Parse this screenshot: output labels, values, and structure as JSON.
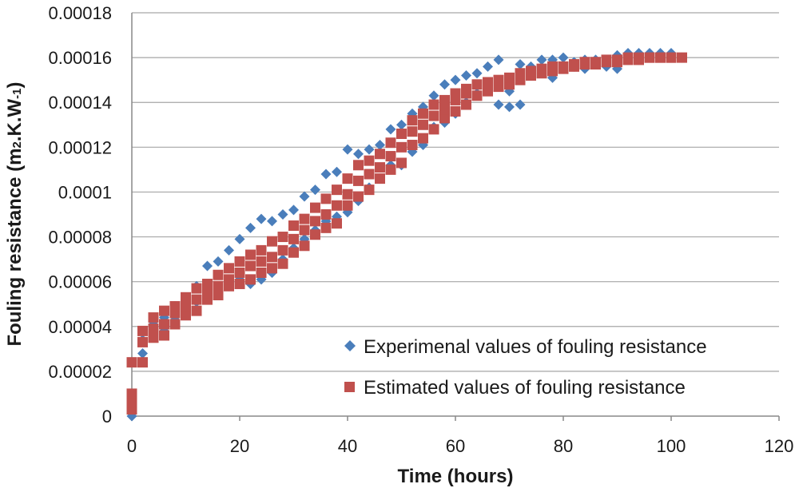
{
  "chart_data": {
    "type": "scatter",
    "title": "",
    "xlabel": "Time (hours)",
    "ylabel_parts": [
      "Fouling resistance (m",
      "2",
      ".K.W",
      "-1",
      ")"
    ],
    "xlim": [
      0,
      120
    ],
    "ylim": [
      0,
      0.00018
    ],
    "x_ticks": [
      0,
      20,
      40,
      60,
      80,
      100,
      120
    ],
    "x_tick_labels": [
      "0",
      "20",
      "40",
      "60",
      "80",
      "100",
      "120"
    ],
    "y_ticks": [
      0,
      2e-05,
      4e-05,
      6e-05,
      8e-05,
      0.0001,
      0.00012,
      0.00014,
      0.00016,
      0.00018
    ],
    "y_tick_labels": [
      "0",
      "0.00002",
      "0.00004",
      "0.00006",
      "0.00008",
      "0.0001",
      "0.00012",
      "0.00014",
      "0.00016",
      "0.00018"
    ],
    "grid": "horizontal",
    "legend_position": "bottom-right",
    "colors": {
      "experimental": "#4a7ebb",
      "estimated": "#c0504d",
      "grid": "#a6a6a6",
      "axis": "#888888"
    },
    "series": [
      {
        "name": "Experimenal values of fouling resistance",
        "marker": "diamond",
        "x": [
          0,
          0,
          2,
          2,
          4,
          4,
          6,
          6,
          8,
          8,
          10,
          10,
          12,
          12,
          14,
          14,
          16,
          16,
          18,
          18,
          20,
          20,
          22,
          22,
          24,
          24,
          26,
          26,
          28,
          28,
          30,
          30,
          32,
          32,
          34,
          34,
          36,
          36,
          38,
          38,
          40,
          40,
          42,
          42,
          44,
          44,
          46,
          46,
          48,
          48,
          50,
          50,
          52,
          52,
          54,
          54,
          56,
          56,
          58,
          58,
          60,
          60,
          62,
          62,
          64,
          64,
          66,
          66,
          68,
          68,
          70,
          70,
          72,
          72,
          74,
          74,
          76,
          76,
          78,
          78,
          80,
          80,
          82,
          82,
          84,
          84,
          86,
          86,
          88,
          88,
          90,
          90,
          92,
          92,
          94,
          94,
          96,
          96,
          98,
          98,
          100,
          100,
          102
        ],
        "y": [
          0,
          9.5e-06,
          2.8e-05,
          3.4e-05,
          3.6e-05,
          4.1e-05,
          3.8e-05,
          4.4e-05,
          4.3e-05,
          4.9e-05,
          4.7e-05,
          5.2e-05,
          5.1e-05,
          5.8e-05,
          5.3e-05,
          6.7e-05,
          5.5e-05,
          6.9e-05,
          5.8e-05,
          7.4e-05,
          6.1e-05,
          7.9e-05,
          5.9e-05,
          8.4e-05,
          6.1e-05,
          8.8e-05,
          6.4e-05,
          8.7e-05,
          7e-05,
          9e-05,
          7.5e-05,
          9.2e-05,
          7.9e-05,
          9.8e-05,
          8.3e-05,
          0.000101,
          8.7e-05,
          0.000108,
          8.9e-05,
          0.000109,
          9.1e-05,
          0.000119,
          9.6e-05,
          0.000117,
          0.000102,
          0.000119,
          0.000106,
          0.000121,
          0.000112,
          0.000128,
          0.000112,
          0.00013,
          0.000118,
          0.000135,
          0.000121,
          0.000138,
          0.000129,
          0.000143,
          0.000131,
          0.000148,
          0.000135,
          0.00015,
          0.00014,
          0.000152,
          0.000144,
          0.000153,
          0.000149,
          0.000156,
          0.000139,
          0.000159,
          0.000138,
          0.000145,
          0.000139,
          0.000157,
          0.000152,
          0.000156,
          0.000154,
          0.000159,
          0.000151,
          0.000159,
          0.000155,
          0.00016,
          0.000156,
          0.000158,
          0.000155,
          0.000159,
          0.000157,
          0.000159,
          0.000156,
          0.000158,
          0.000155,
          0.000161,
          0.000159,
          0.000162,
          0.000159,
          0.000162,
          0.00016,
          0.000162,
          0.00016,
          0.000162,
          0.00016,
          0.000162,
          0.00016
        ]
      },
      {
        "name": "Estimated values of fouling resistance",
        "marker": "square",
        "x": [
          0,
          0,
          0,
          0,
          2,
          2,
          2,
          4,
          4,
          4,
          6,
          6,
          6,
          8,
          8,
          8,
          10,
          10,
          10,
          12,
          12,
          12,
          14,
          14,
          14,
          16,
          16,
          16,
          18,
          18,
          18,
          20,
          20,
          20,
          22,
          22,
          22,
          24,
          24,
          24,
          26,
          26,
          26,
          28,
          28,
          28,
          30,
          30,
          30,
          32,
          32,
          32,
          34,
          34,
          34,
          36,
          36,
          36,
          38,
          38,
          38,
          40,
          40,
          40,
          42,
          42,
          42,
          44,
          44,
          44,
          46,
          46,
          46,
          48,
          48,
          48,
          50,
          50,
          50,
          52,
          52,
          52,
          54,
          54,
          54,
          56,
          56,
          56,
          58,
          58,
          58,
          60,
          60,
          60,
          62,
          62,
          62,
          64,
          64,
          66,
          66,
          68,
          68,
          70,
          70,
          72,
          72,
          74,
          74,
          76,
          76,
          78,
          78,
          80,
          80,
          82,
          82,
          84,
          84,
          86,
          86,
          88,
          88,
          90,
          90,
          92,
          92,
          94,
          94,
          96,
          96,
          98,
          98,
          100,
          100,
          102
        ],
        "y": [
          3e-06,
          6e-06,
          1e-05,
          2.4e-05,
          2.4e-05,
          3.3e-05,
          3.8e-05,
          3.5e-05,
          3.9e-05,
          4.4e-05,
          3.6e-05,
          4.1e-05,
          4.7e-05,
          4.1e-05,
          4.6e-05,
          4.9e-05,
          4.5e-05,
          4.9e-05,
          5.3e-05,
          4.7e-05,
          5.2e-05,
          5.7e-05,
          5.2e-05,
          5.5e-05,
          5.9e-05,
          5.4e-05,
          5.8e-05,
          6.3e-05,
          5.8e-05,
          6.1e-05,
          6.6e-05,
          5.9e-05,
          6.4e-05,
          6.9e-05,
          6.1e-05,
          6.7e-05,
          7.2e-05,
          6.4e-05,
          6.9e-05,
          7.4e-05,
          6.6e-05,
          7.1e-05,
          7.8e-05,
          6.8e-05,
          7.4e-05,
          8e-05,
          7.3e-05,
          7.9e-05,
          8.5e-05,
          7.6e-05,
          8.3e-05,
          8.8e-05,
          8.1e-05,
          8.7e-05,
          9.3e-05,
          8.4e-05,
          9e-05,
          9.7e-05,
          8.6e-05,
          9.4e-05,
          0.000101,
          9.4e-05,
          9.9e-05,
          0.000106,
          9.8e-05,
          0.000105,
          0.000112,
          0.000101,
          0.000108,
          0.000114,
          0.000106,
          0.000111,
          0.000117,
          0.00011,
          0.000116,
          0.000122,
          0.000113,
          0.00012,
          0.000126,
          0.000121,
          0.000127,
          0.000132,
          0.000124,
          0.00013,
          0.000135,
          0.000128,
          0.000134,
          0.000139,
          0.000133,
          0.000137,
          0.000141,
          0.000136,
          0.000141,
          0.000144,
          0.000139,
          0.000144,
          0.000146,
          0.000143,
          0.000148,
          0.000145,
          0.000149,
          0.000147,
          0.00015,
          0.000148,
          0.000151,
          0.00015,
          0.000153,
          0.000152,
          0.000154,
          0.000153,
          0.000155,
          0.000154,
          0.000156,
          0.000155,
          0.000156,
          0.000156,
          0.000157,
          0.000157,
          0.000158,
          0.000157,
          0.000158,
          0.000158,
          0.000159,
          0.000158,
          0.000159,
          0.000159,
          0.00016,
          0.000159,
          0.00016,
          0.00016,
          0.00016,
          0.00016,
          0.00016,
          0.00016,
          0.00016,
          0.00016
        ]
      }
    ]
  }
}
